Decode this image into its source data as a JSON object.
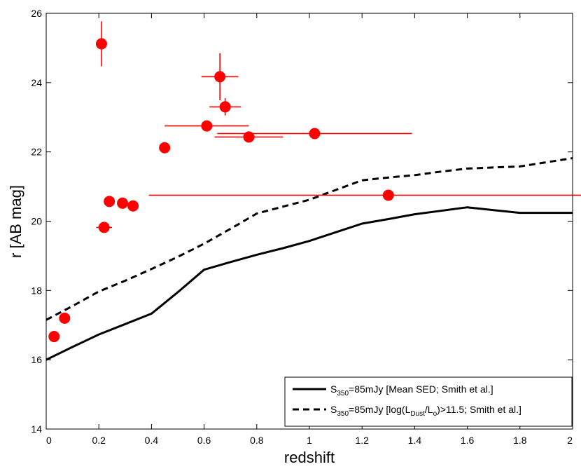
{
  "chart_data": {
    "type": "scatter",
    "xlabel": "redshift",
    "ylabel": "r [AB mag]",
    "xlim": [
      0,
      2
    ],
    "ylim": [
      14,
      26
    ],
    "xticks": [
      "0",
      "0.2",
      "0.4",
      "0.6",
      "0.8",
      "1",
      "1.2",
      "1.4",
      "1.6",
      "1.8",
      "2"
    ],
    "xtick_values": [
      0,
      0.2,
      0.4,
      0.6,
      0.8,
      1.0,
      1.2,
      1.4,
      1.6,
      1.8,
      2.0
    ],
    "yticks": [
      "14",
      "16",
      "18",
      "20",
      "22",
      "24",
      "26"
    ],
    "ytick_values": [
      14,
      16,
      18,
      20,
      22,
      24,
      26
    ],
    "grid": false,
    "legend_position": "bottom-right",
    "points": {
      "name": "sources",
      "color": "#ff0000",
      "data": [
        {
          "x": 0.03,
          "y": 16.67,
          "xerr": 0,
          "yerr": 0
        },
        {
          "x": 0.07,
          "y": 17.2,
          "xerr": 0,
          "yerr": 0
        },
        {
          "x": 0.21,
          "y": 25.12,
          "xerr": 0,
          "yerr": 0.65
        },
        {
          "x": 0.22,
          "y": 19.82,
          "xerr": 0.03,
          "yerr": 0
        },
        {
          "x": 0.24,
          "y": 20.57,
          "xerr": 0,
          "yerr": 0
        },
        {
          "x": 0.29,
          "y": 20.52,
          "xerr": 0,
          "yerr": 0
        },
        {
          "x": 0.33,
          "y": 20.44,
          "xerr": 0,
          "yerr": 0
        },
        {
          "x": 0.45,
          "y": 22.12,
          "xerr": 0,
          "yerr": 0
        },
        {
          "x": 0.61,
          "y": 22.75,
          "xerr": 0.16,
          "yerr": 0.15
        },
        {
          "x": 0.66,
          "y": 24.17,
          "xerr": 0.07,
          "yerr": 0.68
        },
        {
          "x": 0.68,
          "y": 23.3,
          "xerr": 0.06,
          "yerr": 0.25
        },
        {
          "x": 0.77,
          "y": 22.43,
          "xerr": 0.13,
          "yerr": 0.1
        },
        {
          "x": 1.02,
          "y": 22.53,
          "xerr": 0.37,
          "yerr": 0
        },
        {
          "x": 1.3,
          "y": 20.75,
          "xerr": 0.91,
          "yerr": 0
        }
      ]
    },
    "series": [
      {
        "name": "mean_sed",
        "style": "solid",
        "color": "#000000",
        "x": [
          0.0,
          0.1,
          0.2,
          0.3,
          0.4,
          0.5,
          0.6,
          0.7,
          0.8,
          0.9,
          1.0,
          1.1,
          1.2,
          1.3,
          1.4,
          1.5,
          1.6,
          1.7,
          1.8,
          1.9,
          2.0
        ],
        "y": [
          16.0,
          16.37,
          16.73,
          17.03,
          17.33,
          17.95,
          18.6,
          18.82,
          19.03,
          19.22,
          19.43,
          19.68,
          19.93,
          20.06,
          20.2,
          20.3,
          20.4,
          20.32,
          20.24,
          20.24,
          20.24
        ]
      },
      {
        "name": "high_ldust",
        "style": "dashed",
        "color": "#000000",
        "x": [
          0.0,
          0.1,
          0.2,
          0.3,
          0.4,
          0.5,
          0.6,
          0.7,
          0.8,
          0.9,
          1.0,
          1.1,
          1.2,
          1.3,
          1.4,
          1.5,
          1.6,
          1.7,
          1.8,
          1.9,
          2.0
        ],
        "y": [
          17.15,
          17.55,
          17.97,
          18.28,
          18.62,
          18.97,
          19.35,
          19.78,
          20.22,
          20.42,
          20.62,
          20.9,
          21.18,
          21.26,
          21.33,
          21.43,
          21.52,
          21.55,
          21.58,
          21.7,
          21.82
        ]
      }
    ],
    "legend": [
      {
        "style": "solid",
        "prefix": "S",
        "sub": "350",
        "text": "=85mJy [Mean SED; Smith et al.]"
      },
      {
        "style": "dashed",
        "prefix": "S",
        "sub": "350",
        "text": "=85mJy [log(L",
        "sub2": "Dust",
        "text2": "/L",
        "sub3": "o",
        "text3": ")>11.5; Smith et al.]"
      }
    ]
  }
}
